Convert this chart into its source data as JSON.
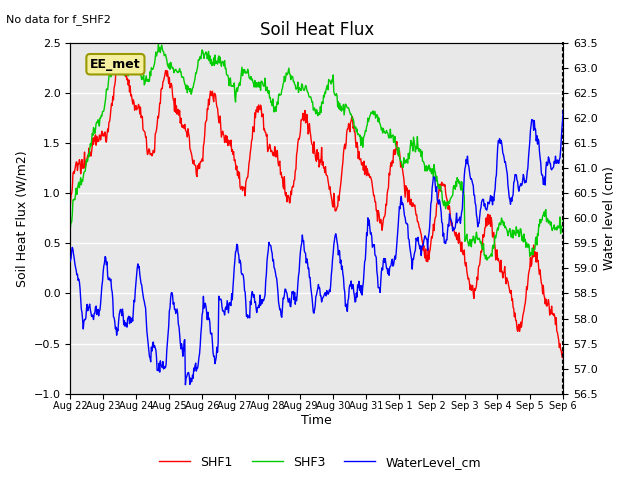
{
  "title": "Soil Heat Flux",
  "subtitle": "No data for f_SHF2",
  "xlabel": "Time",
  "ylabel_left": "Soil Heat Flux (W/m2)",
  "ylabel_right": "Water level (cm)",
  "ylim_left": [
    -1.0,
    2.5
  ],
  "ylim_right": [
    56.5,
    63.5
  ],
  "annotation": "EE_met",
  "xtick_labels": [
    "Aug 22",
    "Aug 23",
    "Aug 24",
    "Aug 25",
    "Aug 26",
    "Aug 27",
    "Aug 28",
    "Aug 29",
    "Aug 30",
    "Aug 31",
    "Sep 1",
    "Sep 2",
    "Sep 3",
    "Sep 4",
    "Sep 5",
    "Sep 6"
  ],
  "colors": {
    "SHF1": "#ff0000",
    "SHF3": "#00cc00",
    "WaterLevel": "#0000ff"
  },
  "bg_color": "#ffffff",
  "plot_bg_color": "#e8e8e8",
  "grid_color": "#ffffff",
  "legend_entries": [
    "SHF1",
    "SHF3",
    "WaterLevel_cm"
  ]
}
